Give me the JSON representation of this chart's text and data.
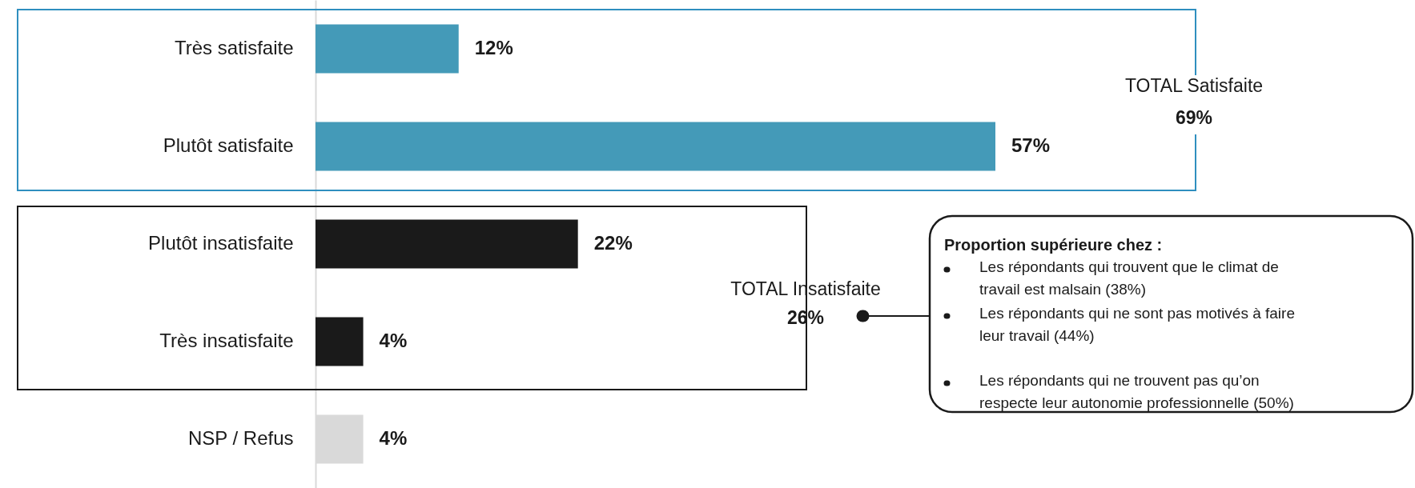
{
  "chart_data": {
    "type": "bar",
    "orientation": "horizontal",
    "tick_labels": "y",
    "categories": [
      "Très satisfaite",
      "Plutôt satisfaite",
      "Plutôt insatisfaite",
      "Très insatisfaite",
      "NSP / Refus"
    ],
    "values": [
      12,
      57,
      22,
      4,
      4
    ],
    "colors": [
      "#449ab8",
      "#449ab8",
      "#1a1a1a",
      "#1a1a1a",
      "#d9d9d9"
    ],
    "value_labels": [
      "12%",
      "57%",
      "22%",
      "4%",
      "4%"
    ],
    "annotations": [
      "TOTAL Satisfaite",
      "69%",
      "TOTAL Insatisfaite",
      "26%",
      "Proportion supérieure chez :",
      "Les répondants qui trouvent que le climat de travail est malsain (38%)",
      "Les répondants qui ne sont pas motivés à faire leur travail (44%)",
      "Les répondants qui ne trouvent pas qu’on respecte leur autonomie professionnelle (50%)"
    ]
  }
}
